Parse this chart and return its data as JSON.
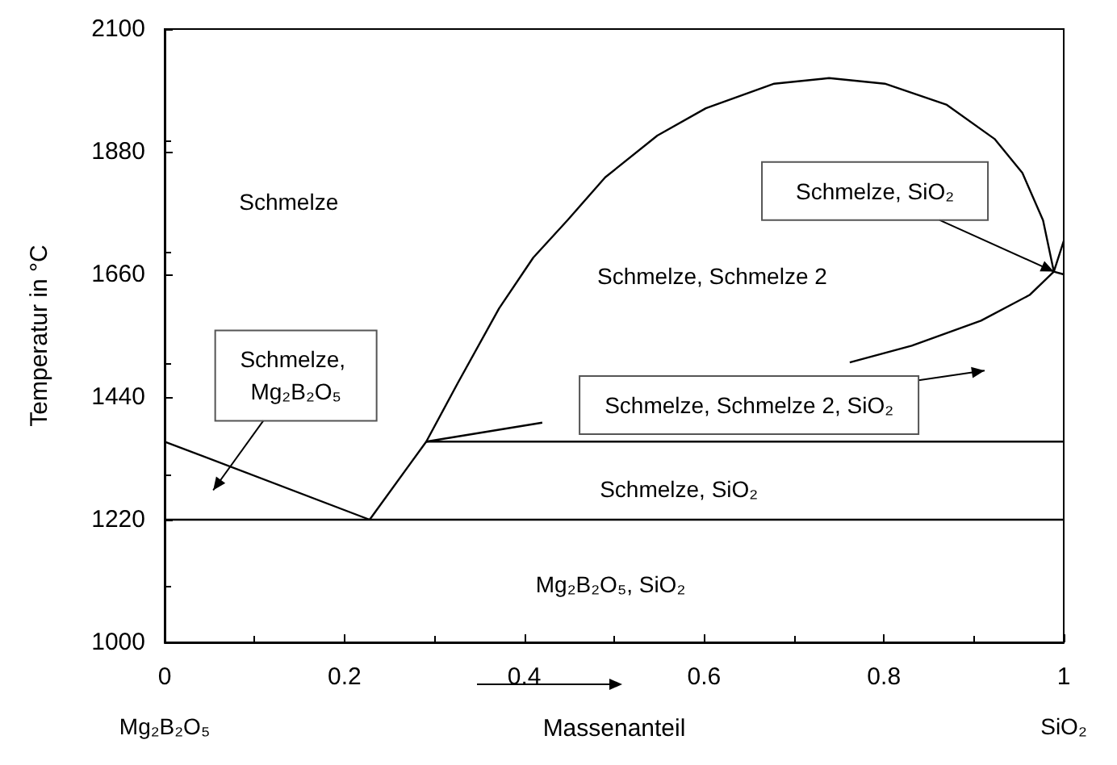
{
  "chart_data": {
    "type": "line",
    "xlabel": "Massenanteil",
    "ylabel": "Temperatur in °C",
    "xlim": [
      0,
      1
    ],
    "xticks": [
      0,
      0.2,
      0.4,
      0.6,
      0.8,
      1
    ],
    "ylim": [
      1000,
      2100
    ],
    "yticks": [
      1000,
      1220,
      1440,
      1660,
      1880,
      2100
    ],
    "grid": false,
    "marker": "none",
    "line_style": "solid",
    "series": [
      {
        "color": "#000000",
        "x": [
          0,
          0.228
        ],
        "values": [
          1360,
          1220
        ]
      },
      {
        "color": "#000000",
        "x": [
          0,
          1
        ],
        "values": [
          1220,
          1220
        ]
      },
      {
        "color": "#000000",
        "x": [
          0.291,
          1
        ],
        "values": [
          1360,
          1360
        ]
      },
      {
        "color": "#000000",
        "x": [
          0.228,
          0.291,
          0.326,
          0.372,
          0.41,
          0.448,
          0.49,
          0.548,
          0.602,
          0.678,
          0.739,
          0.801,
          0.87,
          0.923,
          0.954,
          0.977,
          0.989,
          1
        ],
        "values": [
          1220,
          1360,
          1465,
          1599,
          1690,
          1757,
          1834,
          1909,
          1958,
          2002,
          2012,
          2002,
          1964,
          1903,
          1842,
          1757,
          1665,
          1720
        ]
      },
      {
        "color": "#000000",
        "x": [
          0.291,
          0.42,
          0.6,
          0.762,
          0.831,
          0.908,
          0.962,
          0.989,
          1
        ],
        "values": [
          1360,
          1394,
          null,
          1502,
          1532,
          1577,
          1623,
          1665,
          1660
        ]
      }
    ],
    "annotations": [
      "Schmelze",
      "Schmelze, Schmelze 2",
      "Schmelze, SiO₂",
      "Mg₂B₂O₅, SiO₂",
      "Schmelze, Mg₂B₂O₅",
      "Schmelze, Schmelze 2, SiO₂",
      {
        "text": "Schmelze, SiO₂",
        "x": 0.989,
        "y": 1665
      },
      "Mg₂B₂O₅",
      "SiO₂"
    ]
  }
}
